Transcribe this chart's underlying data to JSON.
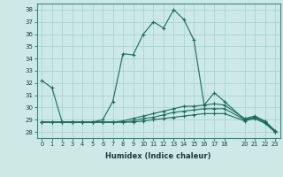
{
  "xlabel": "Humidex (Indice chaleur)",
  "ylabel": "",
  "bg_color": "#cce9e5",
  "grid_color": "#aad4d0",
  "line_color": "#1a6b5a",
  "xlim": [
    -0.5,
    23.5
  ],
  "ylim": [
    27.5,
    38.5
  ],
  "xticks": [
    0,
    1,
    2,
    3,
    4,
    5,
    6,
    7,
    8,
    9,
    10,
    11,
    12,
    13,
    14,
    15,
    16,
    17,
    18,
    20,
    21,
    22,
    23
  ],
  "yticks": [
    28,
    29,
    30,
    31,
    32,
    33,
    34,
    35,
    36,
    37,
    38
  ],
  "series": [
    {
      "x": [
        0,
        1,
        2,
        3,
        4,
        5,
        6,
        7,
        8,
        9,
        10,
        11,
        12,
        13,
        14,
        15,
        16,
        17,
        18,
        20,
        21,
        22,
        23
      ],
      "y": [
        32.2,
        31.6,
        28.8,
        28.8,
        28.8,
        28.8,
        29.0,
        30.5,
        34.4,
        34.3,
        36.0,
        37.0,
        36.5,
        38.0,
        37.2,
        35.5,
        30.2,
        31.2,
        30.5,
        29.0,
        29.2,
        28.8,
        28.0
      ]
    },
    {
      "x": [
        0,
        1,
        2,
        3,
        4,
        5,
        6,
        7,
        8,
        9,
        10,
        11,
        12,
        13,
        14,
        15,
        16,
        17,
        18,
        20,
        21,
        22,
        23
      ],
      "y": [
        28.8,
        28.8,
        28.8,
        28.8,
        28.8,
        28.8,
        28.8,
        28.8,
        28.9,
        29.1,
        29.3,
        29.5,
        29.7,
        29.9,
        30.1,
        30.1,
        30.2,
        30.3,
        30.2,
        29.1,
        29.3,
        28.9,
        28.1
      ]
    },
    {
      "x": [
        0,
        1,
        2,
        3,
        4,
        5,
        6,
        7,
        8,
        9,
        10,
        11,
        12,
        13,
        14,
        15,
        16,
        17,
        18,
        20,
        21,
        22,
        23
      ],
      "y": [
        28.8,
        28.8,
        28.8,
        28.8,
        28.8,
        28.8,
        28.8,
        28.8,
        28.8,
        28.9,
        29.1,
        29.2,
        29.4,
        29.6,
        29.7,
        29.8,
        29.9,
        29.9,
        29.9,
        29.0,
        29.2,
        28.8,
        28.1
      ]
    },
    {
      "x": [
        0,
        1,
        2,
        3,
        4,
        5,
        6,
        7,
        8,
        9,
        10,
        11,
        12,
        13,
        14,
        15,
        16,
        17,
        18,
        20,
        21,
        22,
        23
      ],
      "y": [
        28.8,
        28.8,
        28.8,
        28.8,
        28.8,
        28.8,
        28.8,
        28.8,
        28.8,
        28.8,
        28.9,
        29.0,
        29.1,
        29.2,
        29.3,
        29.4,
        29.5,
        29.5,
        29.5,
        28.9,
        29.1,
        28.7,
        28.0
      ]
    }
  ]
}
